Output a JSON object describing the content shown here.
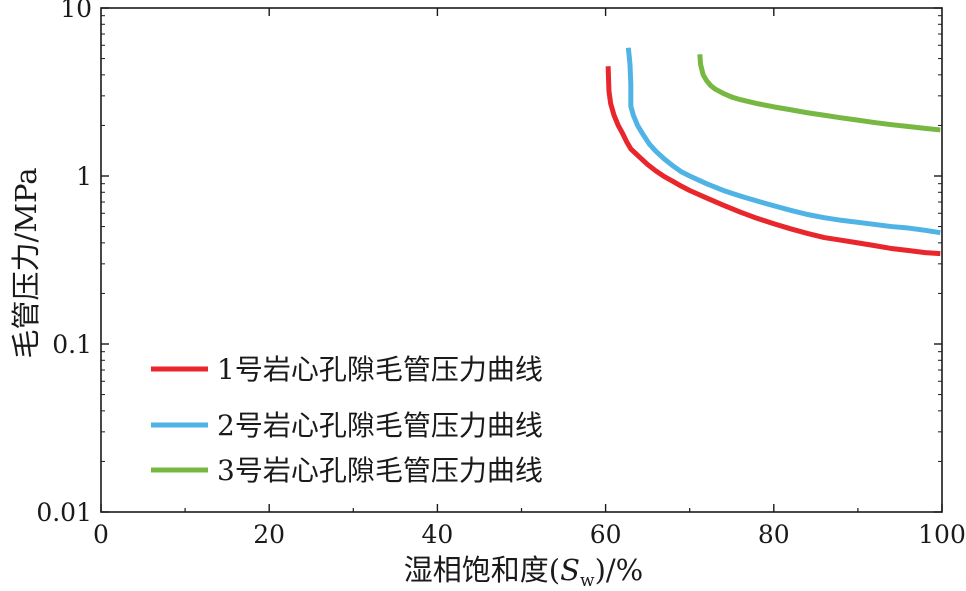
{
  "chart_data": {
    "type": "line",
    "title": "",
    "xlabel": "湿相饱和度(S_w)/%",
    "xlabel_parts": {
      "prefix": "湿相饱和度(",
      "var": "S",
      "sub": "w",
      "suffix": ")/%"
    },
    "ylabel": "毛管压力/MPa",
    "xlim": [
      0,
      100
    ],
    "ylim": [
      0.01,
      10
    ],
    "yscale": "log",
    "grid": false,
    "legend_position": "bottom-left",
    "x_ticks": [
      0,
      20,
      40,
      60,
      80,
      100
    ],
    "x_tick_labels": [
      "0",
      "20",
      "40",
      "60",
      "80",
      "100"
    ],
    "y_ticks": [
      0.01,
      0.1,
      1,
      10
    ],
    "y_tick_labels": [
      "0.01",
      "0.1",
      "1",
      "10"
    ],
    "series": [
      {
        "name": "1号岩心孔隙毛管压力曲线",
        "color": "#e8262b",
        "points": [
          [
            60.3,
            4.5
          ],
          [
            60.35,
            3.8
          ],
          [
            60.4,
            3.2
          ],
          [
            60.6,
            2.7
          ],
          [
            61.0,
            2.3
          ],
          [
            61.5,
            2.0
          ],
          [
            62.0,
            1.8
          ],
          [
            62.5,
            1.6
          ],
          [
            63.0,
            1.45
          ],
          [
            64.0,
            1.3
          ],
          [
            65.0,
            1.17
          ],
          [
            66.0,
            1.07
          ],
          [
            67.0,
            0.99
          ],
          [
            68.0,
            0.93
          ],
          [
            69.0,
            0.87
          ],
          [
            70.0,
            0.82
          ],
          [
            72.0,
            0.74
          ],
          [
            74.0,
            0.67
          ],
          [
            76.0,
            0.61
          ],
          [
            78.0,
            0.56
          ],
          [
            80.0,
            0.52
          ],
          [
            82.0,
            0.485
          ],
          [
            84.0,
            0.455
          ],
          [
            86.0,
            0.43
          ],
          [
            88.0,
            0.415
          ],
          [
            90.0,
            0.4
          ],
          [
            92.0,
            0.385
          ],
          [
            94.0,
            0.37
          ],
          [
            96.0,
            0.36
          ],
          [
            98.0,
            0.35
          ],
          [
            99.8,
            0.345
          ]
        ]
      },
      {
        "name": "2号岩心孔隙毛管压力曲线",
        "color": "#4fb3e6",
        "points": [
          [
            62.7,
            5.8
          ],
          [
            62.8,
            5.2
          ],
          [
            62.9,
            4.6
          ],
          [
            63.0,
            3.5
          ],
          [
            63.0,
            2.6
          ],
          [
            63.3,
            2.3
          ],
          [
            63.8,
            2.0
          ],
          [
            64.5,
            1.75
          ],
          [
            65.2,
            1.55
          ],
          [
            66.0,
            1.4
          ],
          [
            67.0,
            1.26
          ],
          [
            68.0,
            1.15
          ],
          [
            69.0,
            1.06
          ],
          [
            70.0,
            1.0
          ],
          [
            72.0,
            0.9
          ],
          [
            74.0,
            0.82
          ],
          [
            76.0,
            0.76
          ],
          [
            78.0,
            0.71
          ],
          [
            80.0,
            0.665
          ],
          [
            82.0,
            0.625
          ],
          [
            84.0,
            0.59
          ],
          [
            86.0,
            0.565
          ],
          [
            88.0,
            0.545
          ],
          [
            90.0,
            0.53
          ],
          [
            92.0,
            0.515
          ],
          [
            94.0,
            0.5
          ],
          [
            96.0,
            0.49
          ],
          [
            98.0,
            0.475
          ],
          [
            99.8,
            0.46
          ]
        ]
      },
      {
        "name": "3号岩心孔隙毛管压力曲线",
        "color": "#77b843",
        "points": [
          [
            71.2,
            5.3
          ],
          [
            71.3,
            4.6
          ],
          [
            71.6,
            4.0
          ],
          [
            72.0,
            3.7
          ],
          [
            72.5,
            3.45
          ],
          [
            73.0,
            3.3
          ],
          [
            74.0,
            3.1
          ],
          [
            75.0,
            2.95
          ],
          [
            76.0,
            2.85
          ],
          [
            78.0,
            2.7
          ],
          [
            80.0,
            2.58
          ],
          [
            82.0,
            2.48
          ],
          [
            84.0,
            2.38
          ],
          [
            86.0,
            2.3
          ],
          [
            88.0,
            2.22
          ],
          [
            90.0,
            2.15
          ],
          [
            92.0,
            2.08
          ],
          [
            94.0,
            2.02
          ],
          [
            96.0,
            1.97
          ],
          [
            98.0,
            1.92
          ],
          [
            99.8,
            1.88
          ]
        ]
      }
    ]
  }
}
